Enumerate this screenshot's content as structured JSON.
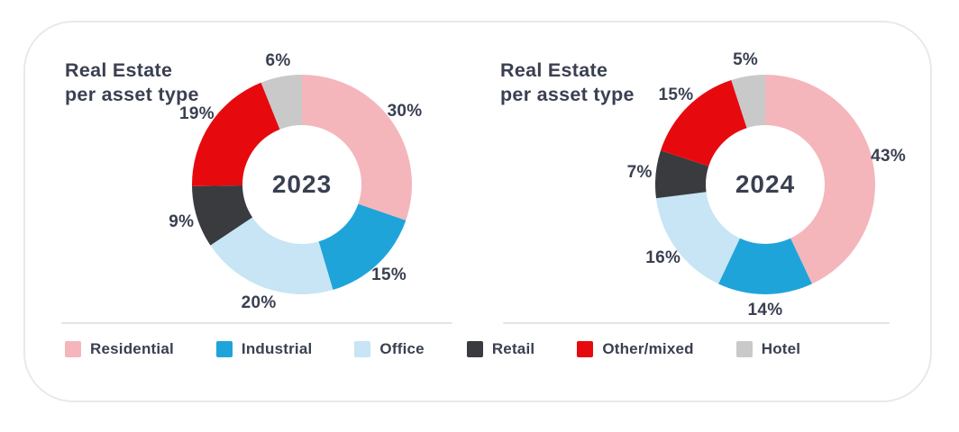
{
  "text_color": "#3a4051",
  "card": {
    "border_color": "#e9e9e9",
    "background": "#ffffff"
  },
  "chart_data": [
    {
      "type": "donut",
      "title": "Real Estate per asset type",
      "center_label": "2023",
      "unit": "%",
      "start_angle_deg": 0,
      "direction": "clockwise",
      "inner_radius_ratio": 0.54,
      "categories": [
        "Residential",
        "Industrial",
        "Office",
        "Retail",
        "Other/mixed",
        "Hotel"
      ],
      "values": [
        30,
        15,
        20,
        9,
        19,
        6
      ],
      "colors": [
        "#f4b6bb",
        "#1fa4da",
        "#c7e5f4",
        "#393b3f",
        "#e60a0f",
        "#c9c9c9"
      ]
    },
    {
      "type": "donut",
      "title": "Real Estate per asset type",
      "center_label": "2024",
      "unit": "%",
      "start_angle_deg": 0,
      "direction": "clockwise",
      "inner_radius_ratio": 0.54,
      "categories": [
        "Residential",
        "Industrial",
        "Office",
        "Retail",
        "Other/mixed",
        "Hotel"
      ],
      "values": [
        43,
        14,
        16,
        7,
        15,
        5
      ],
      "colors": [
        "#f4b6bb",
        "#1fa4da",
        "#c7e5f4",
        "#393b3f",
        "#e60a0f",
        "#c9c9c9"
      ]
    }
  ],
  "legend": {
    "items": [
      {
        "label": "Residential",
        "color": "#f4b6bb"
      },
      {
        "label": "Industrial",
        "color": "#1fa4da"
      },
      {
        "label": "Office",
        "color": "#c7e5f4"
      },
      {
        "label": "Retail",
        "color": "#393b3f"
      },
      {
        "label": "Other/mixed",
        "color": "#e60a0f"
      },
      {
        "label": "Hotel",
        "color": "#c9c9c9"
      }
    ]
  }
}
